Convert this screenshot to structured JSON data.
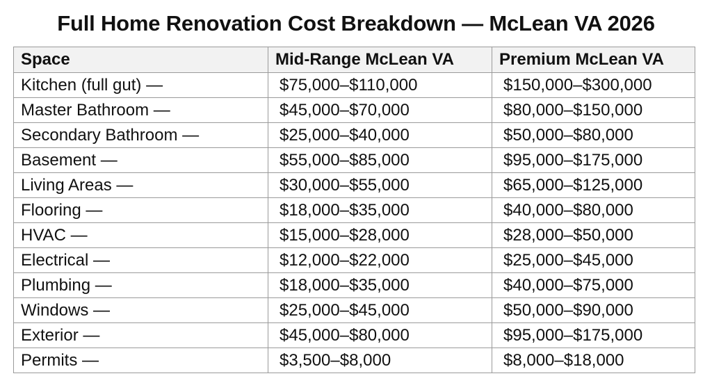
{
  "title": "Full Home Renovation Cost Breakdown — McLean VA 2026",
  "table": {
    "headers": [
      "Space",
      "Mid-Range McLean VA",
      "Premium McLean VA"
    ],
    "rows": [
      {
        "space": "Kitchen (full gut) —",
        "mid": "$75,000–$110,000",
        "premium": "$150,000–$300,000"
      },
      {
        "space": "Master Bathroom —",
        "mid": "$45,000–$70,000",
        "premium": "$80,000–$150,000"
      },
      {
        "space": "Secondary Bathroom —",
        "mid": "$25,000–$40,000",
        "premium": "$50,000–$80,000"
      },
      {
        "space": "Basement —",
        "mid": "$55,000–$85,000",
        "premium": "$95,000–$175,000"
      },
      {
        "space": "Living Areas —",
        "mid": "$30,000–$55,000",
        "premium": "$65,000–$125,000"
      },
      {
        "space": "Flooring —",
        "mid": "$18,000–$35,000",
        "premium": "$40,000–$80,000"
      },
      {
        "space": "HVAC —",
        "mid": "$15,000–$28,000",
        "premium": "$28,000–$50,000"
      },
      {
        "space": "Electrical —",
        "mid": "$12,000–$22,000",
        "premium": "$25,000–$45,000"
      },
      {
        "space": "Plumbing —",
        "mid": "$18,000–$35,000",
        "premium": "$40,000–$75,000"
      },
      {
        "space": "Windows —",
        "mid": "$25,000–$45,000",
        "premium": "$50,000–$90,000"
      },
      {
        "space": "Exterior —",
        "mid": "$45,000–$80,000",
        "premium": "$95,000–$175,000"
      },
      {
        "space": "Permits —",
        "mid": "$3,500–$8,000",
        "premium": "$8,000–$18,000"
      }
    ]
  }
}
